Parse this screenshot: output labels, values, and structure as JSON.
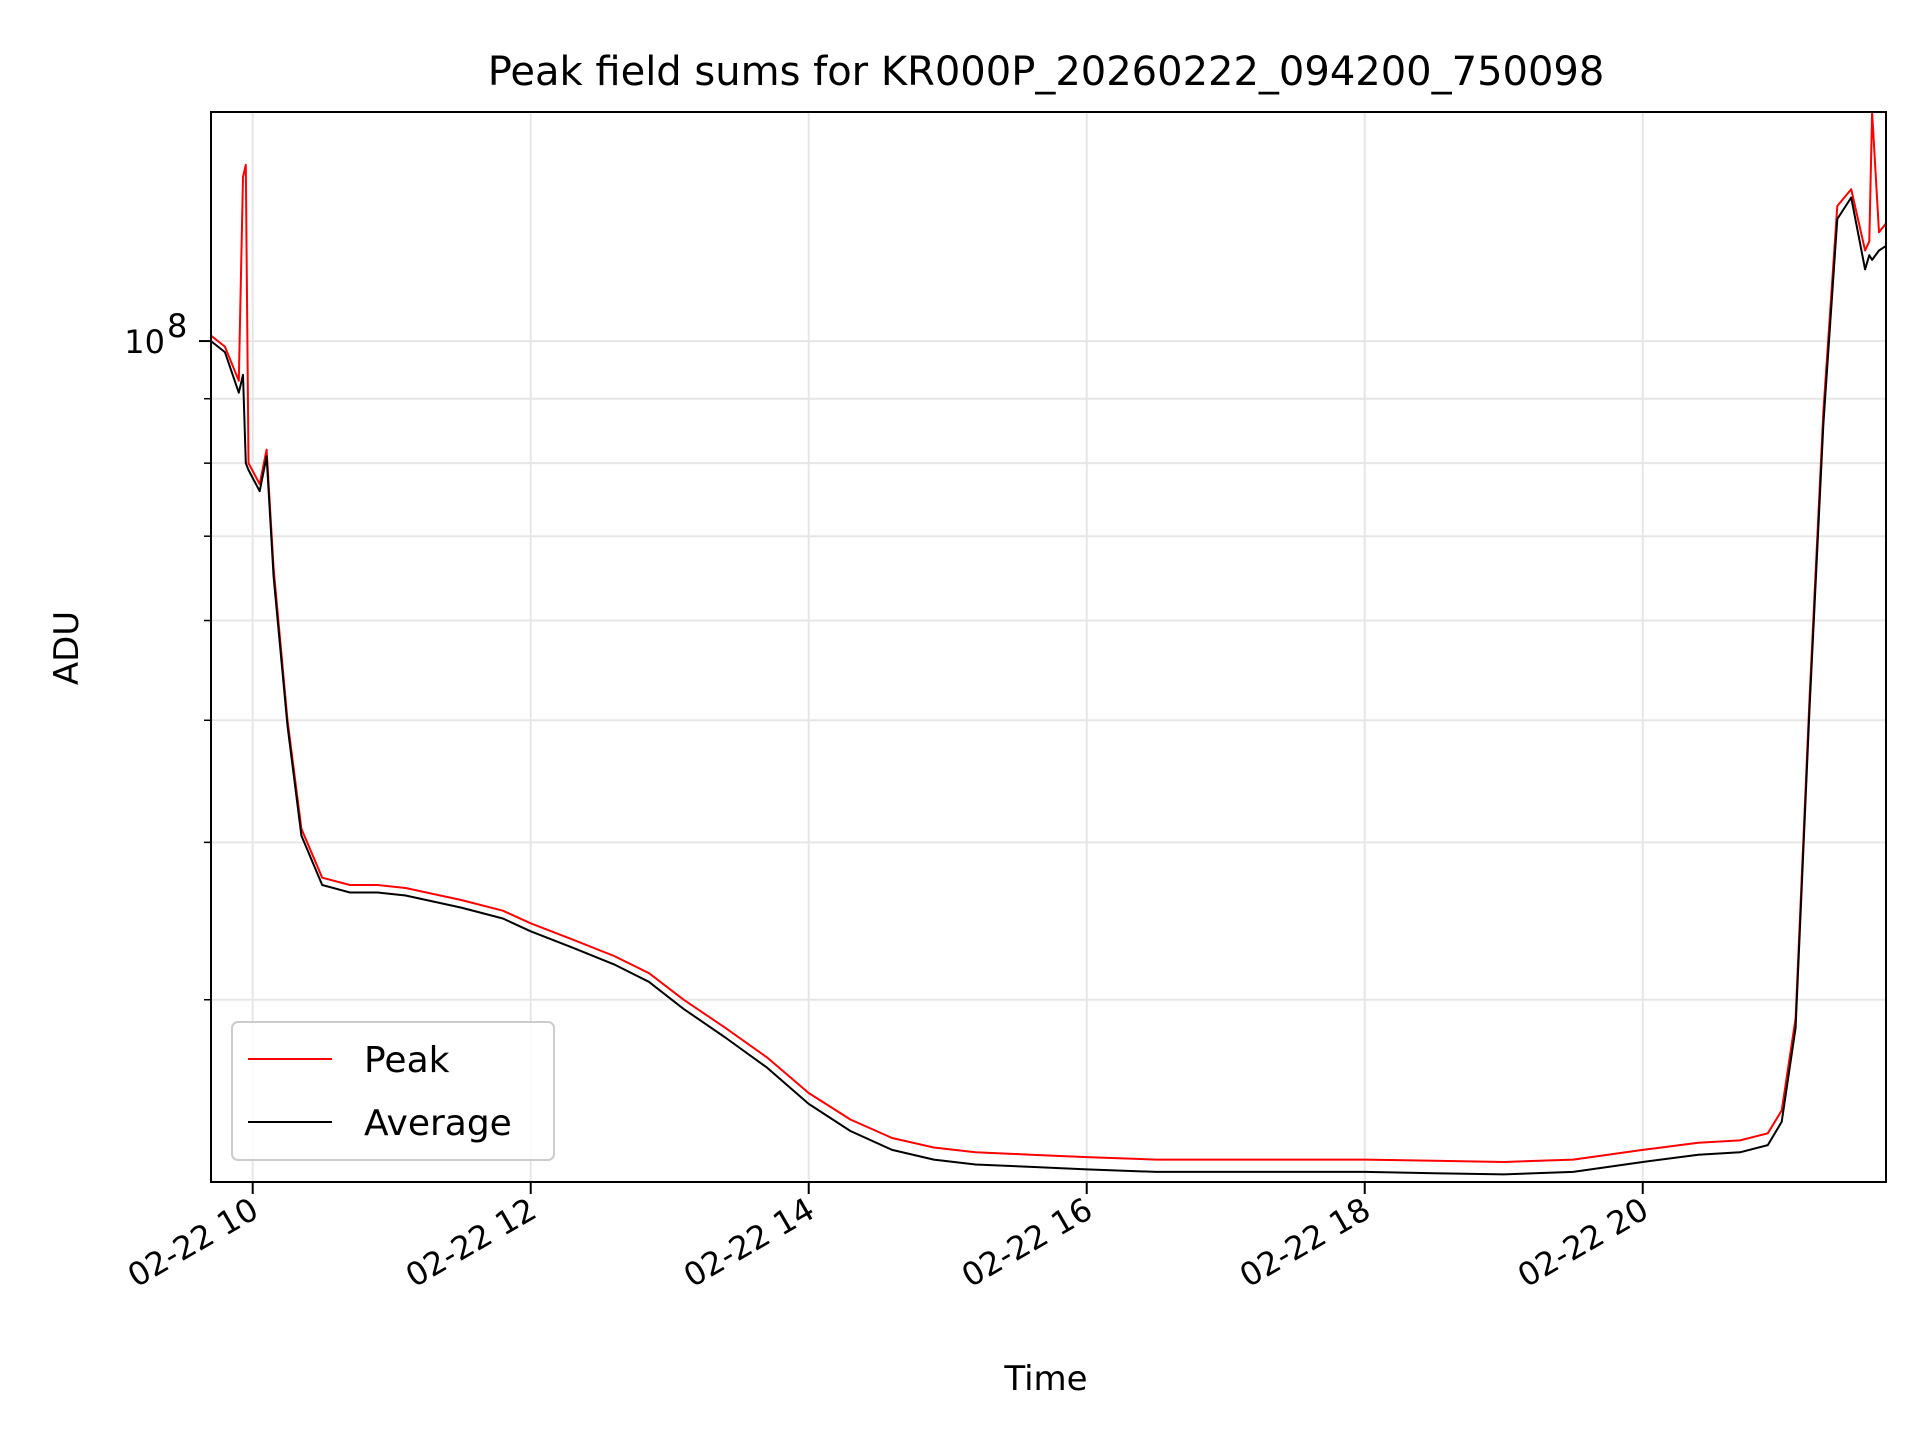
{
  "chart_data": {
    "type": "line",
    "title": "Peak field sums for KR000P_20260222_094200_750098",
    "xlabel": "Time",
    "ylabel": "ADU",
    "yscale": "log",
    "grid": true,
    "legend_position": "lower-left",
    "xlim": [
      9.7,
      21.75
    ],
    "ylim": [
      21500000,
      152000000
    ],
    "x_unit": "hours on 2026-02-22",
    "x_ticks": [
      10,
      12,
      14,
      16,
      18,
      20
    ],
    "x_tick_labels": [
      "02-22 10",
      "02-22 12",
      "02-22 14",
      "02-22 16",
      "02-22 18",
      "02-22 20"
    ],
    "y_major_ticks": [
      100000000
    ],
    "y_major_tick_labels": [
      "10"
    ],
    "y_tick_exponent": "8",
    "y_minor_ticks": [
      30000000,
      40000000,
      50000000,
      60000000,
      70000000,
      80000000,
      90000000
    ],
    "colors": {
      "peak": "#ff0000",
      "average": "#000000",
      "grid": "#e6e6e6"
    },
    "series": [
      {
        "name": "Peak",
        "color": "#ff0000",
        "x": [
          9.7,
          9.8,
          9.9,
          9.93,
          9.95,
          9.97,
          10.05,
          10.1,
          10.15,
          10.25,
          10.35,
          10.5,
          10.7,
          10.9,
          11.1,
          11.5,
          11.8,
          12.0,
          12.3,
          12.6,
          12.85,
          13.1,
          13.4,
          13.7,
          14.0,
          14.3,
          14.6,
          14.9,
          15.2,
          15.6,
          16.0,
          16.5,
          17.0,
          17.5,
          18.0,
          18.5,
          19.0,
          19.5,
          20.0,
          20.4,
          20.7,
          20.9,
          21.0,
          21.1,
          21.2,
          21.3,
          21.4,
          21.5,
          21.6,
          21.63,
          21.65,
          21.7,
          21.75
        ],
        "y": [
          101000000,
          99000000,
          93000000,
          135000000,
          138000000,
          80000000,
          77000000,
          82000000,
          66000000,
          50000000,
          41000000,
          37500000,
          37000000,
          37000000,
          36800000,
          36000000,
          35300000,
          34500000,
          33500000,
          32500000,
          31500000,
          30000000,
          28500000,
          27000000,
          25300000,
          24100000,
          23300000,
          22900000,
          22700000,
          22600000,
          22500000,
          22400000,
          22400000,
          22400000,
          22400000,
          22350000,
          22300000,
          22400000,
          22800000,
          23100000,
          23200000,
          23500000,
          24500000,
          29000000,
          52000000,
          88000000,
          128000000,
          132000000,
          118000000,
          120000000,
          152000000,
          122000000,
          124000000
        ]
      },
      {
        "name": "Average",
        "color": "#000000",
        "x": [
          9.7,
          9.8,
          9.9,
          9.93,
          9.95,
          9.97,
          10.05,
          10.1,
          10.15,
          10.25,
          10.35,
          10.5,
          10.7,
          10.9,
          11.1,
          11.5,
          11.8,
          12.0,
          12.3,
          12.6,
          12.85,
          13.1,
          13.4,
          13.7,
          14.0,
          14.3,
          14.6,
          14.9,
          15.2,
          15.6,
          16.0,
          16.5,
          17.0,
          17.5,
          18.0,
          18.5,
          19.0,
          19.5,
          20.0,
          20.4,
          20.7,
          20.9,
          21.0,
          21.1,
          21.2,
          21.3,
          21.4,
          21.5,
          21.6,
          21.63,
          21.65,
          21.7,
          21.75
        ],
        "y": [
          100000000,
          98000000,
          91000000,
          94000000,
          80000000,
          79000000,
          76000000,
          81000000,
          65000000,
          49500000,
          40500000,
          37000000,
          36500000,
          36500000,
          36300000,
          35500000,
          34800000,
          34000000,
          33000000,
          32000000,
          31000000,
          29500000,
          28000000,
          26500000,
          24800000,
          23600000,
          22800000,
          22400000,
          22200000,
          22100000,
          22000000,
          21900000,
          21900000,
          21900000,
          21900000,
          21850000,
          21800000,
          21900000,
          22300000,
          22600000,
          22700000,
          23000000,
          24000000,
          28500000,
          51000000,
          86000000,
          125000000,
          130000000,
          114000000,
          117000000,
          116000000,
          118000000,
          119000000
        ]
      }
    ]
  }
}
